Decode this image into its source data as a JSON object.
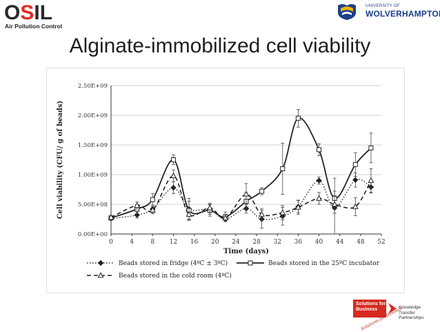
{
  "header": {
    "osil_logo": {
      "text": "OSIL",
      "tagline": "Air Pollution Control"
    },
    "uow_logo": {
      "small": "UNIVERSITY OF",
      "big": "WOLVERHAMPTON"
    }
  },
  "slide": {
    "title": "Alginate-immobilized cell viability"
  },
  "footer_logo": {
    "solutions": "Solutions for Business",
    "script": "Solutions for Business",
    "ktp_lines": [
      "Knowledge",
      "Transfer",
      "Partnerships"
    ]
  },
  "colors": {
    "accent": "#e02c22",
    "uow_blue": "#1c3f8b",
    "ktp_red": "#d62a1e"
  },
  "chart_data": {
    "type": "line",
    "title": "",
    "xlabel": "Time (days)",
    "ylabel": "Cell viability (CFU/ g of beads)",
    "xlim": [
      0,
      52
    ],
    "ylim": [
      0,
      2500000000
    ],
    "x_ticks": [
      0,
      4,
      8,
      12,
      16,
      20,
      24,
      28,
      32,
      36,
      40,
      44,
      48,
      52
    ],
    "y_ticks": [
      0,
      500000000,
      1000000000,
      1500000000,
      2000000000,
      2500000000
    ],
    "y_tick_labels": [
      "0.00E+00",
      "5.00E+08",
      "1.00E+09",
      "1.50E+09",
      "2.00E+09",
      "2.50E+09"
    ],
    "grid": true,
    "legend_position": "bottom",
    "series": [
      {
        "name": "Beads stored in fridge (4ºC ± 3ºC)",
        "line_style": "dotted",
        "marker": "filled-diamond",
        "x": [
          0,
          5,
          8,
          12,
          15,
          19,
          22,
          26,
          29,
          33,
          36,
          40,
          43,
          47,
          50
        ],
        "values": [
          260000000,
          320000000,
          420000000,
          780000000,
          420000000,
          410000000,
          250000000,
          430000000,
          250000000,
          300000000,
          460000000,
          900000000,
          440000000,
          910000000,
          790000000
        ],
        "errors": [
          20000000,
          50000000,
          60000000,
          100000000,
          180000000,
          80000000,
          40000000,
          80000000,
          150000000,
          150000000,
          100000000,
          60000000,
          500000000,
          120000000,
          100000000
        ]
      },
      {
        "name": "Beads stored in the 25ºC incubator",
        "line_style": "solid",
        "marker": "open-square",
        "x": [
          0,
          5,
          8,
          12,
          15,
          19,
          22,
          26,
          29,
          33,
          36,
          40,
          43,
          47,
          50
        ],
        "values": [
          270000000,
          420000000,
          580000000,
          1250000000,
          400000000,
          400000000,
          290000000,
          550000000,
          720000000,
          1100000000,
          1950000000,
          1420000000,
          600000000,
          1170000000,
          1450000000
        ],
        "errors": [
          30000000,
          80000000,
          100000000,
          80000000,
          150000000,
          100000000,
          80000000,
          150000000,
          60000000,
          430000000,
          150000000,
          100000000,
          120000000,
          200000000,
          250000000
        ]
      },
      {
        "name": "Beads stored in the cold room (4ºC)",
        "line_style": "dashed",
        "marker": "open-triangle",
        "x": [
          0,
          5,
          8,
          12,
          15,
          19,
          22,
          26,
          29,
          33,
          36,
          40,
          43,
          47,
          50
        ],
        "values": [
          280000000,
          480000000,
          400000000,
          980000000,
          330000000,
          440000000,
          270000000,
          670000000,
          330000000,
          360000000,
          450000000,
          600000000,
          500000000,
          460000000,
          900000000
        ],
        "errors": [
          30000000,
          60000000,
          60000000,
          100000000,
          100000000,
          80000000,
          60000000,
          180000000,
          100000000,
          120000000,
          120000000,
          100000000,
          150000000,
          150000000,
          200000000
        ]
      }
    ]
  }
}
